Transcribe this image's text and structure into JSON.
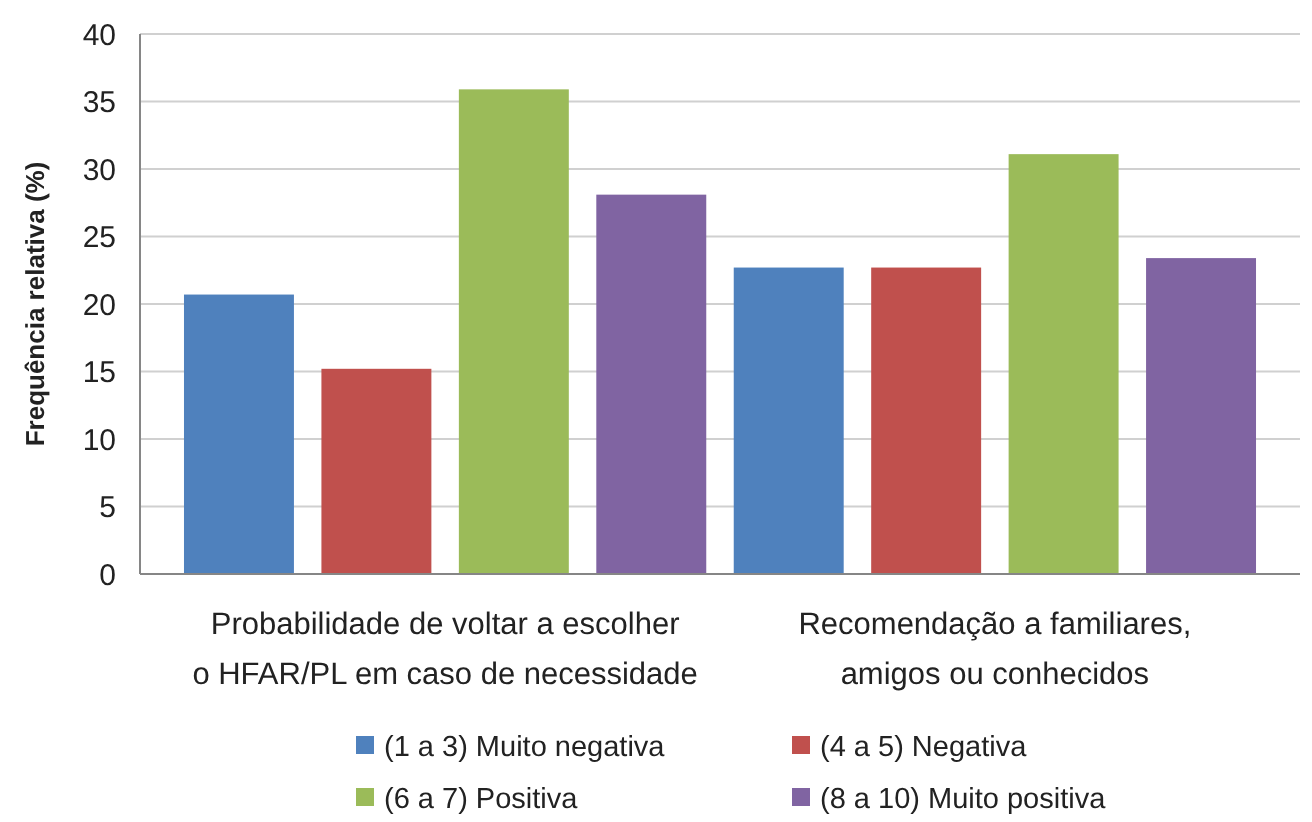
{
  "chart_data": {
    "type": "bar",
    "ylabel": "Frequência relativa (%)",
    "categories": [
      "Probabilidade de voltar a escolher\no HFAR/PL em caso de necessidade",
      "Recomendação a familiares,\namigos ou conhecidos"
    ],
    "series": [
      {
        "name": "(1 a 3) Muito negativa",
        "color": "#4f81bd",
        "values": [
          20.7,
          22.7
        ]
      },
      {
        "name": "(4 a 5) Negativa",
        "color": "#c0504d",
        "values": [
          15.2,
          22.7
        ]
      },
      {
        "name": "(6 a 7) Positiva",
        "color": "#9bbb59",
        "values": [
          35.9,
          31.1
        ]
      },
      {
        "name": "(8 a 10) Muito positiva",
        "color": "#8064a2",
        "values": [
          28.1,
          23.4
        ]
      }
    ],
    "ylim": [
      0,
      40
    ],
    "yticks": [
      0,
      5,
      10,
      15,
      20,
      25,
      30,
      35,
      40
    ],
    "grid": "y",
    "legend": "bottom"
  }
}
